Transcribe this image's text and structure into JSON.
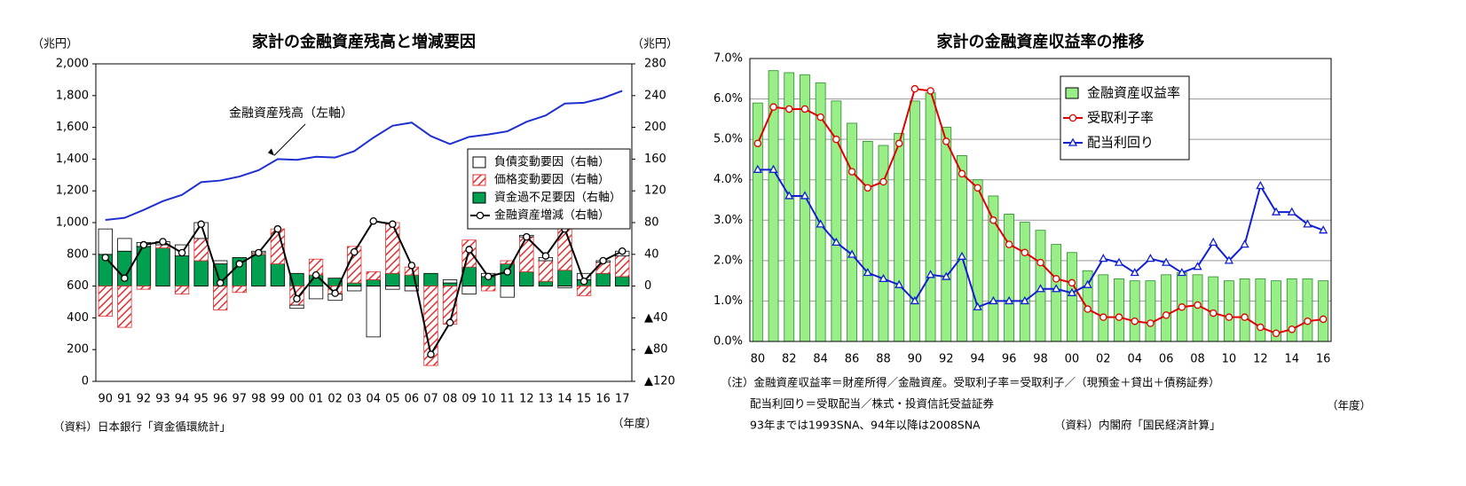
{
  "chart_data": [
    {
      "type": "bar",
      "title": "家計の金融資産残高と増減要因",
      "ylabel": "（兆円）",
      "y2label": "（兆円）",
      "xlabel": "（年度）",
      "source": "（資料）日本銀行「資金循環統計」",
      "categories": [
        "90",
        "91",
        "92",
        "93",
        "94",
        "95",
        "96",
        "97",
        "98",
        "99",
        "00",
        "01",
        "02",
        "03",
        "04",
        "05",
        "06",
        "07",
        "08",
        "09",
        "10",
        "11",
        "12",
        "13",
        "14",
        "15",
        "16",
        "17"
      ],
      "ylim": [
        0,
        2000
      ],
      "yticks": [
        0,
        200,
        400,
        600,
        800,
        {
          "value": 1000,
          "label": "1,000"
        },
        {
          "value": 1200,
          "label": "1,200"
        },
        {
          "value": 1400,
          "label": "1,400"
        },
        {
          "value": 1600,
          "label": "1,600"
        },
        {
          "value": 1800,
          "label": "1,800"
        },
        {
          "value": 2000,
          "label": "2,000"
        }
      ],
      "y2lim": [
        -120,
        280
      ],
      "y2ticks": [
        {
          "value": -120,
          "label": "▲120"
        },
        {
          "value": -80,
          "label": "▲80"
        },
        {
          "value": -40,
          "label": "▲40"
        },
        0,
        40,
        80,
        120,
        160,
        200,
        240,
        280
      ],
      "grid": false,
      "stacked": true,
      "legend": "center right",
      "series": [
        {
          "name": "負債変動要因（右軸）",
          "type": "bar",
          "axis": "y2",
          "color": "#ffffff",
          "values": [
            32,
            16,
            5,
            4,
            14,
            20,
            4,
            0,
            2,
            0,
            -4,
            -16,
            -8,
            -6,
            -64,
            -4,
            -6,
            0,
            4,
            -10,
            4,
            -14,
            2,
            4,
            -2,
            8,
            2,
            6
          ]
        },
        {
          "name": "価格変動要因（右軸）",
          "type": "bar",
          "axis": "y2",
          "color": "#e03030",
          "hatch": true,
          "values": [
            -38,
            -52,
            -4,
            4,
            -10,
            28,
            -30,
            -8,
            2,
            44,
            -24,
            20,
            -10,
            46,
            10,
            64,
            10,
            -100,
            -48,
            34,
            -6,
            4,
            44,
            26,
            54,
            -12,
            14,
            26
          ]
        },
        {
          "name": "資金過不足要因（右軸）",
          "type": "bar",
          "axis": "y2",
          "color": "#00a050",
          "values": [
            40,
            44,
            50,
            48,
            38,
            32,
            28,
            36,
            40,
            28,
            16,
            14,
            10,
            4,
            8,
            16,
            14,
            16,
            4,
            24,
            12,
            28,
            18,
            6,
            20,
            8,
            16,
            12
          ]
        },
        {
          "name": "金融資産増減（右軸）",
          "type": "line",
          "axis": "y2",
          "color": "#000000",
          "marker": "circle",
          "values": [
            36,
            10,
            52,
            56,
            42,
            78,
            4,
            28,
            42,
            72,
            -16,
            14,
            -9,
            43,
            82,
            78,
            26,
            -86,
            -46,
            46,
            12,
            18,
            62,
            38,
            72,
            6,
            32,
            44
          ]
        },
        {
          "name": "金融資産残高（左軸）",
          "type": "line",
          "axis": "y",
          "color": "#2030d0",
          "in_legend": false,
          "values": [
            1017,
            1030,
            1080,
            1135,
            1175,
            1255,
            1265,
            1290,
            1330,
            1400,
            1395,
            1415,
            1410,
            1450,
            1535,
            1610,
            1630,
            1545,
            1495,
            1540,
            1555,
            1575,
            1635,
            1675,
            1750,
            1755,
            1785,
            1830
          ]
        }
      ]
    },
    {
      "type": "bar",
      "title": "家計の金融資産収益率の推移",
      "xlabel": "（年度）",
      "notes": [
        "（注）金融資産収益率＝財産所得／金融資産。受取利子率＝受取利子／（現預金＋貸出＋債務証券）",
        "配当利回り＝受取配当／株式・投資信託受益証券",
        "93年までは1993SNA、94年以降は2008SNA"
      ],
      "source": "（資料）内閣府「国民経済計算」",
      "categories": [
        "80",
        null,
        "82",
        null,
        "84",
        null,
        "86",
        null,
        "88",
        null,
        "90",
        null,
        "92",
        null,
        "94",
        null,
        "96",
        null,
        "98",
        null,
        "00",
        null,
        "02",
        null,
        "04",
        null,
        "06",
        null,
        "08",
        null,
        "10",
        null,
        "12",
        null,
        "14",
        null,
        "16"
      ],
      "ylim": [
        0,
        7
      ],
      "yticks": [
        {
          "value": 0,
          "label": "0.0%"
        },
        {
          "value": 1,
          "label": "1.0%"
        },
        {
          "value": 2,
          "label": "2.0%"
        },
        {
          "value": 3,
          "label": "3.0%"
        },
        {
          "value": 4,
          "label": "4.0%"
        },
        {
          "value": 5,
          "label": "5.0%"
        },
        {
          "value": 6,
          "label": "6.0%"
        },
        {
          "value": 7,
          "label": "7.0%"
        }
      ],
      "grid": true,
      "stacked": false,
      "legend": "upper right",
      "series": [
        {
          "name": "金融資産収益率",
          "type": "bar",
          "axis": "y",
          "color": "#99ee88",
          "values": [
            5.9,
            6.7,
            6.65,
            6.6,
            6.4,
            5.95,
            5.4,
            4.95,
            4.85,
            5.15,
            5.95,
            6.15,
            5.3,
            4.6,
            4.0,
            3.6,
            3.15,
            2.95,
            2.75,
            2.4,
            2.2,
            1.75,
            1.65,
            1.55,
            1.5,
            1.5,
            1.65,
            1.7,
            1.65,
            1.6,
            1.5,
            1.55,
            1.55,
            1.5,
            1.55,
            1.55,
            1.5
          ]
        },
        {
          "name": "受取利子率",
          "type": "line",
          "axis": "y",
          "color": "#e00000",
          "marker": "circle",
          "values": [
            4.9,
            5.8,
            5.75,
            5.75,
            5.55,
            5.0,
            4.2,
            3.8,
            3.95,
            4.9,
            6.25,
            6.2,
            4.95,
            4.15,
            3.8,
            3.0,
            2.4,
            2.2,
            1.95,
            1.55,
            1.45,
            0.8,
            0.6,
            0.6,
            0.5,
            0.45,
            0.65,
            0.85,
            0.9,
            0.7,
            0.6,
            0.6,
            0.35,
            0.2,
            0.3,
            0.5,
            0.55
          ]
        },
        {
          "name": "配当利回り",
          "type": "line",
          "axis": "y",
          "color": "#1020d0",
          "marker": "triangle",
          "values": [
            4.25,
            4.25,
            3.6,
            3.6,
            2.9,
            2.45,
            2.15,
            1.7,
            1.55,
            1.4,
            1.0,
            1.65,
            1.6,
            2.1,
            0.85,
            1.0,
            1.0,
            1.0,
            1.3,
            1.3,
            1.2,
            1.4,
            2.05,
            1.95,
            1.7,
            2.05,
            1.95,
            1.7,
            1.85,
            2.45,
            2.0,
            2.4,
            3.85,
            3.2,
            3.2,
            2.9,
            2.75
          ]
        }
      ]
    }
  ]
}
